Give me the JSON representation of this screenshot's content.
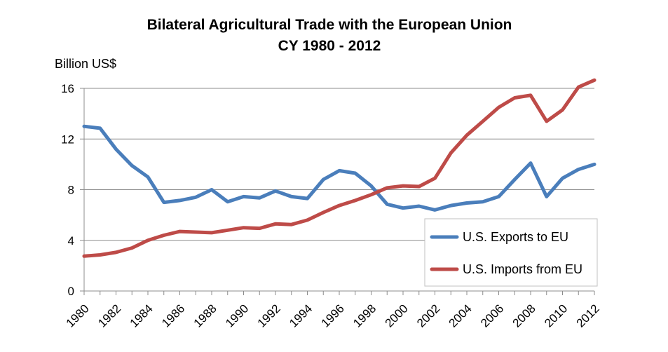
{
  "chart_data": {
    "type": "line",
    "title": "Bilateral Agricultural Trade with the European Union",
    "subtitle": "CY 1980 - 2012",
    "ylabel": "Billion US$",
    "xlabel": "",
    "ylim": [
      0,
      16
    ],
    "yticks": [
      "0",
      "4",
      "8",
      "12",
      "16"
    ],
    "xlim": [
      1980,
      2012
    ],
    "xticks": [
      "1980",
      "1982",
      "1984",
      "1986",
      "1988",
      "1990",
      "1992",
      "1994",
      "1996",
      "1998",
      "2000",
      "2002",
      "2004",
      "2006",
      "2008",
      "2010",
      "2012"
    ],
    "grid": true,
    "legend": "bottom-right",
    "x": [
      1980,
      1981,
      1982,
      1983,
      1984,
      1985,
      1986,
      1987,
      1988,
      1989,
      1990,
      1991,
      1992,
      1993,
      1994,
      1995,
      1996,
      1997,
      1998,
      1999,
      2000,
      2001,
      2002,
      2003,
      2004,
      2005,
      2006,
      2007,
      2008,
      2009,
      2010,
      2011,
      2012
    ],
    "series": [
      {
        "name": "U.S. Exports to EU",
        "color": "#4a7ebb",
        "values": [
          13.0,
          12.85,
          11.2,
          9.9,
          9.0,
          7.0,
          7.15,
          7.4,
          8.0,
          7.05,
          7.45,
          7.35,
          7.9,
          7.45,
          7.3,
          8.8,
          9.5,
          9.3,
          8.3,
          6.85,
          6.55,
          6.7,
          6.4,
          6.75,
          6.95,
          7.05,
          7.45,
          8.8,
          10.1,
          7.45,
          8.9,
          9.6,
          10.0
        ]
      },
      {
        "name": "U.S. Imports from EU",
        "color": "#be4b48",
        "values": [
          2.75,
          2.85,
          3.05,
          3.4,
          4.0,
          4.4,
          4.7,
          4.65,
          4.6,
          4.8,
          5.0,
          4.95,
          5.3,
          5.25,
          5.6,
          6.2,
          6.75,
          7.15,
          7.6,
          8.15,
          8.3,
          8.25,
          8.9,
          10.9,
          12.3,
          13.4,
          14.5,
          15.25,
          15.45,
          13.4,
          14.3,
          16.1,
          16.65
        ]
      }
    ]
  }
}
